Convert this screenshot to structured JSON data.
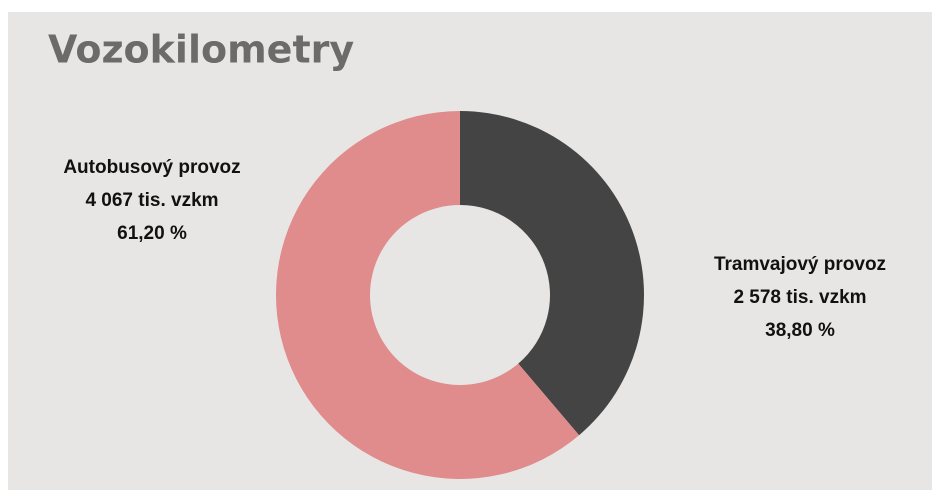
{
  "chart_data": {
    "type": "donut",
    "title": "Vozokilometry",
    "categories": [
      "Tramvajový provoz",
      "Autobusový provoz"
    ],
    "values": [
      2578,
      4067
    ],
    "value_labels": [
      "2 578 tis. vzkm",
      "4 067 tis. vzkm"
    ],
    "percentages": [
      38.8,
      61.2
    ],
    "percent_labels": [
      "38,80 %",
      "61,20 %"
    ],
    "colors": [
      "#444444",
      "#e08b8c"
    ]
  }
}
